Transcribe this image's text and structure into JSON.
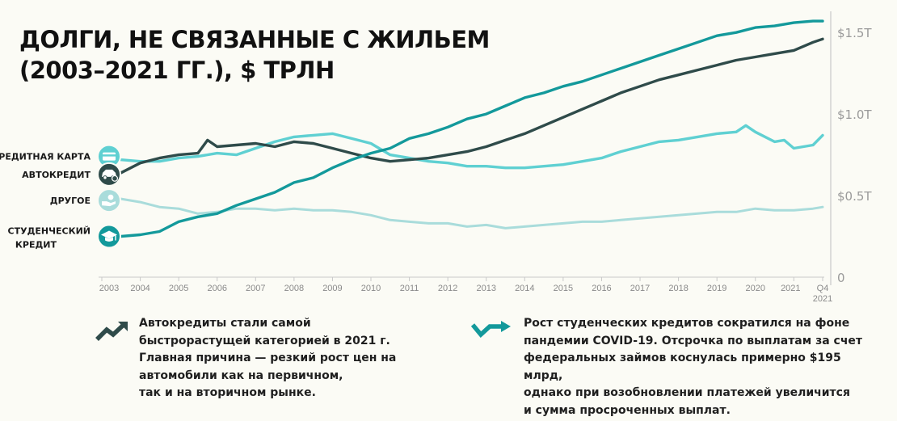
{
  "title": {
    "line1": "ДОЛГИ, НЕ СВЯЗАННЫЕ С ЖИЛЬЕМ",
    "line2": "(2003–2021 ГГ.), $ ТРЛН"
  },
  "notes": {
    "left": "Автокредиты стали самой\nбыстрорастущей категорией в 2021 г.\nГлавная причина — резкий рост цен на\n автомобили как на первичном,\n так и на вторичном рынке.",
    "right": "Рост студенческих кредитов сократился на фоне\nпандемии COVID-19. Отсрочка по выплатам за счет\nфедеральных займов коснулась примерно $195 млрд,\nоднако при возобновлении платежей увеличится\nи сумма просроченных выплат."
  },
  "colors": {
    "credit_card": "#5fd0d2",
    "auto": "#2f4b4a",
    "other": "#a9dcdb",
    "student": "#13999b",
    "axis": "#c9c9c9",
    "background": "#fbfbf5"
  },
  "icons": {
    "credit_card": "credit-card-icon",
    "auto": "car-icon",
    "other": "hand-coin-icon",
    "student": "graduation-cap-icon",
    "note_left": "trend-up-arrow-icon",
    "note_right": "trend-down-up-arrow-icon"
  },
  "chart_data": {
    "type": "line",
    "title": "ДОЛГИ, НЕ СВЯЗАННЫЕ С ЖИЛЬЕМ (2003–2021 ГГ.), $ ТРЛН",
    "x_tick_labels": [
      "2003",
      "2004",
      "2005",
      "2006",
      "2007",
      "2008",
      "2009",
      "2010",
      "2011",
      "2012",
      "2013",
      "2014",
      "2015",
      "2016",
      "2017",
      "2018",
      "2019",
      "2020",
      "2021",
      "Q4"
    ],
    "x_tick_sublabel": "2021",
    "y_tick_labels": [
      "0",
      "$0.5T",
      "$1.0T",
      "$1.5T"
    ],
    "y_ticks": [
      0,
      0.5,
      1.0,
      1.5
    ],
    "xlim": [
      2003.0,
      2021.75
    ],
    "ylim": [
      0,
      1.6
    ],
    "grid": false,
    "legend_position": "left",
    "series": [
      {
        "name": "КРЕДИТНАЯ КАРТА",
        "key": "credit_card",
        "x": [
          2003.0,
          2003.5,
          2004.0,
          2004.5,
          2005.0,
          2005.5,
          2006.0,
          2006.5,
          2007.0,
          2007.5,
          2008.0,
          2008.5,
          2009.0,
          2009.5,
          2010.0,
          2010.5,
          2011.0,
          2011.5,
          2012.0,
          2012.5,
          2013.0,
          2013.5,
          2014.0,
          2014.5,
          2015.0,
          2015.5,
          2016.0,
          2016.5,
          2017.0,
          2017.5,
          2018.0,
          2018.5,
          2019.0,
          2019.5,
          2019.75,
          2020.0,
          2020.5,
          2020.75,
          2021.0,
          2021.5,
          2021.75
        ],
        "values": [
          0.74,
          0.72,
          0.71,
          0.71,
          0.73,
          0.74,
          0.76,
          0.75,
          0.79,
          0.83,
          0.86,
          0.87,
          0.88,
          0.85,
          0.82,
          0.75,
          0.73,
          0.71,
          0.7,
          0.68,
          0.68,
          0.67,
          0.67,
          0.68,
          0.69,
          0.71,
          0.73,
          0.77,
          0.8,
          0.83,
          0.84,
          0.86,
          0.88,
          0.89,
          0.93,
          0.89,
          0.83,
          0.84,
          0.79,
          0.81,
          0.87
        ]
      },
      {
        "name": "АВТОКРЕДИТ",
        "key": "auto",
        "x": [
          2003.0,
          2003.5,
          2004.0,
          2004.5,
          2005.0,
          2005.5,
          2005.75,
          2006.0,
          2006.5,
          2007.0,
          2007.5,
          2008.0,
          2008.5,
          2009.0,
          2009.5,
          2010.0,
          2010.5,
          2011.0,
          2011.5,
          2012.0,
          2012.5,
          2013.0,
          2013.5,
          2014.0,
          2014.5,
          2015.0,
          2015.5,
          2016.0,
          2016.5,
          2017.0,
          2017.5,
          2018.0,
          2018.5,
          2019.0,
          2019.5,
          2020.0,
          2020.5,
          2021.0,
          2021.5,
          2021.75
        ],
        "values": [
          0.63,
          0.64,
          0.7,
          0.73,
          0.75,
          0.76,
          0.84,
          0.8,
          0.81,
          0.82,
          0.8,
          0.83,
          0.82,
          0.79,
          0.76,
          0.73,
          0.71,
          0.72,
          0.73,
          0.75,
          0.77,
          0.8,
          0.84,
          0.88,
          0.93,
          0.98,
          1.03,
          1.08,
          1.13,
          1.17,
          1.21,
          1.24,
          1.27,
          1.3,
          1.33,
          1.35,
          1.37,
          1.39,
          1.44,
          1.46
        ]
      },
      {
        "name": "ДРУГОЕ",
        "key": "other",
        "x": [
          2003.0,
          2003.5,
          2004.0,
          2004.5,
          2005.0,
          2005.5,
          2006.0,
          2006.5,
          2007.0,
          2007.5,
          2008.0,
          2008.5,
          2009.0,
          2009.5,
          2010.0,
          2010.5,
          2011.0,
          2011.5,
          2012.0,
          2012.5,
          2013.0,
          2013.5,
          2014.0,
          2014.5,
          2015.0,
          2015.5,
          2016.0,
          2016.5,
          2017.0,
          2017.5,
          2018.0,
          2018.5,
          2019.0,
          2019.5,
          2020.0,
          2020.5,
          2021.0,
          2021.5,
          2021.75
        ],
        "values": [
          0.47,
          0.48,
          0.46,
          0.43,
          0.42,
          0.39,
          0.4,
          0.42,
          0.42,
          0.41,
          0.42,
          0.41,
          0.41,
          0.4,
          0.38,
          0.35,
          0.34,
          0.33,
          0.33,
          0.31,
          0.32,
          0.3,
          0.31,
          0.32,
          0.33,
          0.34,
          0.34,
          0.35,
          0.36,
          0.37,
          0.38,
          0.39,
          0.4,
          0.4,
          0.42,
          0.41,
          0.41,
          0.42,
          0.43
        ]
      },
      {
        "name": "СТУДЕНЧЕСКИЙ КРЕДИТ",
        "key": "student",
        "x": [
          2003.0,
          2003.5,
          2004.0,
          2004.5,
          2005.0,
          2005.5,
          2006.0,
          2006.5,
          2007.0,
          2007.5,
          2008.0,
          2008.5,
          2009.0,
          2009.5,
          2010.0,
          2010.5,
          2011.0,
          2011.5,
          2012.0,
          2012.5,
          2013.0,
          2013.5,
          2014.0,
          2014.5,
          2015.0,
          2015.5,
          2016.0,
          2016.5,
          2017.0,
          2017.5,
          2018.0,
          2018.5,
          2019.0,
          2019.5,
          2020.0,
          2020.5,
          2021.0,
          2021.5,
          2021.75
        ],
        "values": [
          0.25,
          0.25,
          0.26,
          0.28,
          0.34,
          0.37,
          0.39,
          0.44,
          0.48,
          0.52,
          0.58,
          0.61,
          0.67,
          0.72,
          0.76,
          0.79,
          0.85,
          0.88,
          0.92,
          0.97,
          1.0,
          1.05,
          1.1,
          1.13,
          1.17,
          1.2,
          1.24,
          1.28,
          1.32,
          1.36,
          1.4,
          1.44,
          1.48,
          1.5,
          1.53,
          1.54,
          1.56,
          1.57,
          1.57
        ]
      }
    ]
  }
}
